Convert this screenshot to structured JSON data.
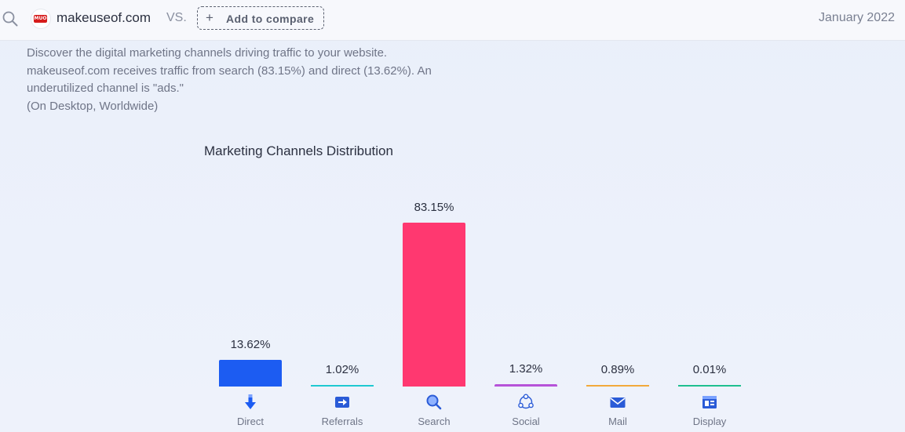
{
  "header": {
    "domain": "makeuseof.com",
    "favicon_text": "MUO",
    "vs_label": "VS.",
    "add_compare_label": "Add to compare",
    "date": "January 2022"
  },
  "intro": {
    "lines": [
      "Discover the digital marketing channels driving traffic to your website.",
      "makeuseof.com receives traffic from search (83.15%) and direct (13.62%). An",
      "underutilized channel is \"ads.\"",
      "(On Desktop, Worldwide)"
    ]
  },
  "chart_data": {
    "type": "bar",
    "title": "Marketing Channels Distribution",
    "categories": [
      "Direct",
      "Referrals",
      "Search",
      "Social",
      "Mail",
      "Display"
    ],
    "values": [
      13.62,
      1.02,
      83.15,
      1.32,
      0.89,
      0.01
    ],
    "value_labels": [
      "13.62%",
      "1.02%",
      "83.15%",
      "1.32%",
      "0.89%",
      "0.01%"
    ],
    "colors": [
      "#1c5cf2",
      "#1fc9d1",
      "#ff3870",
      "#b653d9",
      "#f2a93b",
      "#1fbf8f"
    ],
    "icons": [
      "arrow-down-icon",
      "referral-arrow-icon",
      "magnifier-icon",
      "social-network-icon",
      "envelope-icon",
      "display-ad-icon"
    ],
    "ylim": [
      0,
      83.15
    ]
  }
}
